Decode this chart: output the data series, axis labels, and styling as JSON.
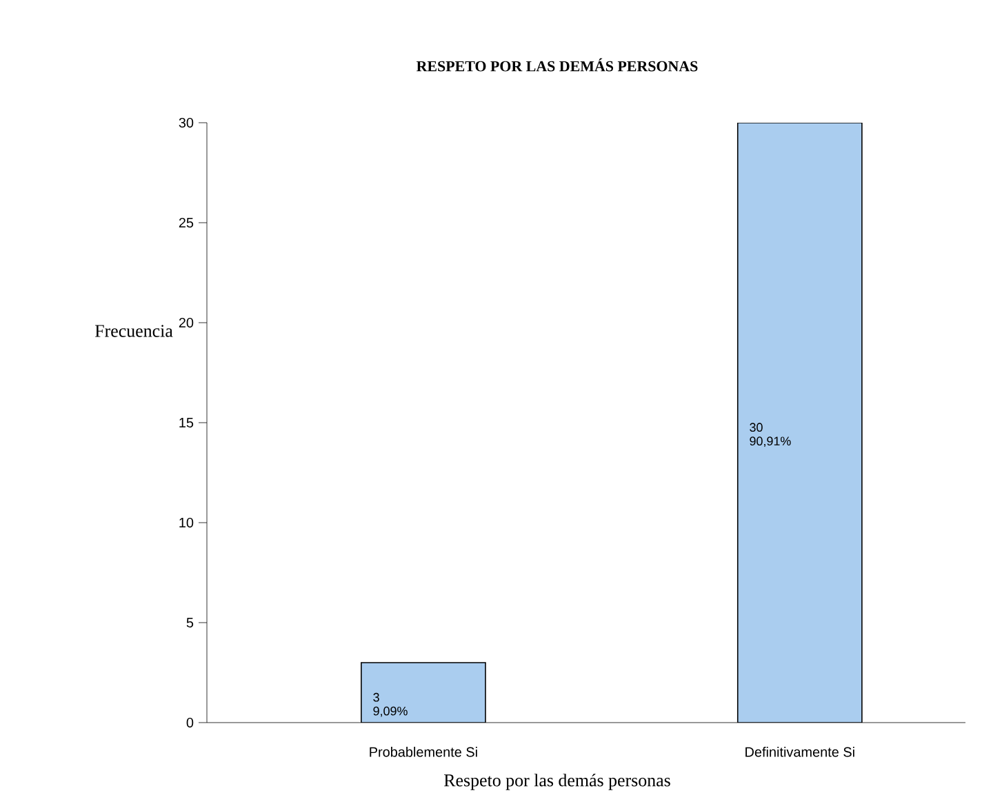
{
  "chart_data": {
    "type": "bar",
    "title": "RESPETO POR LAS DEMÁS PERSONAS",
    "xlabel": "Respeto por las demás personas",
    "ylabel": "Frecuencia",
    "categories": [
      "Probablemente Si",
      "Definitivamente Si"
    ],
    "values": [
      3,
      30
    ],
    "color": "#aacdef",
    "value_labels": [
      "3 9,09%",
      "30 90,91%"
    ],
    "ylim": [
      0,
      30
    ],
    "yticks": [
      0,
      5,
      10,
      15,
      20,
      25,
      30
    ]
  }
}
